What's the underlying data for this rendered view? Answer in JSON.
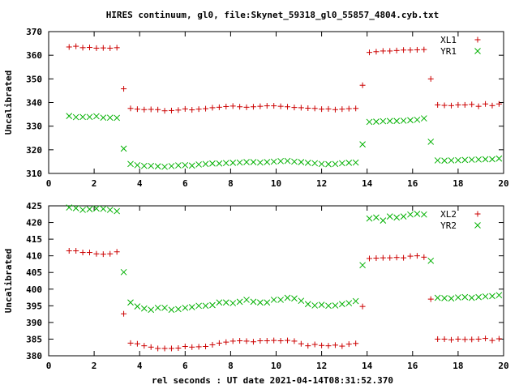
{
  "title": "HIRES continuum, gl0, file:Skynet_59318_gl0_55857_4804.cyb.txt",
  "xlabel": "rel seconds : UT date 2021-04-14T08:31:52.370",
  "colors": {
    "red": "#cc0000",
    "green": "#00b000"
  },
  "chart_data": [
    {
      "type": "scatter",
      "ylabel": "Uncalibrated",
      "xlim": [
        0,
        20
      ],
      "ylim": [
        310,
        370
      ],
      "xticks": [
        0,
        2,
        4,
        6,
        8,
        10,
        12,
        14,
        16,
        18,
        20
      ],
      "yticks": [
        310,
        320,
        330,
        340,
        350,
        360,
        370
      ],
      "grid": false,
      "legend_position": "top-right",
      "x": [
        0.9,
        1.2,
        1.5,
        1.8,
        2.1,
        2.4,
        2.7,
        3.0,
        3.3,
        3.6,
        3.9,
        4.2,
        4.5,
        4.8,
        5.1,
        5.4,
        5.7,
        6.0,
        6.3,
        6.6,
        6.9,
        7.2,
        7.5,
        7.8,
        8.1,
        8.4,
        8.7,
        9.0,
        9.3,
        9.6,
        9.9,
        10.2,
        10.5,
        10.8,
        11.1,
        11.4,
        11.7,
        12.0,
        12.3,
        12.6,
        12.9,
        13.2,
        13.5,
        13.8,
        14.1,
        14.4,
        14.7,
        15.0,
        15.3,
        15.6,
        15.9,
        16.2,
        16.5,
        16.8,
        17.1,
        17.4,
        17.7,
        18.0,
        18.3,
        18.6,
        18.9,
        19.2,
        19.5,
        19.8
      ],
      "series": [
        {
          "name": "XL1",
          "marker": "plus",
          "color": "#cc0000",
          "values": [
            363.5,
            363.8,
            363.2,
            363.3,
            363.0,
            363.1,
            363.0,
            363.2,
            345.8,
            337.5,
            337.2,
            337.0,
            337.1,
            337.0,
            336.5,
            336.6,
            336.8,
            337.3,
            336.9,
            337.2,
            337.4,
            337.8,
            338.0,
            338.3,
            338.5,
            338.2,
            338.0,
            338.2,
            338.4,
            338.6,
            338.6,
            338.4,
            338.2,
            337.9,
            337.8,
            337.6,
            337.5,
            337.2,
            337.3,
            337.0,
            337.2,
            337.4,
            337.5,
            347.3,
            361.2,
            361.5,
            361.8,
            361.8,
            362.0,
            362.2,
            362.2,
            362.3,
            362.4,
            350.0,
            339.0,
            338.8,
            338.7,
            339.0,
            339.0,
            339.2,
            338.4,
            339.4,
            338.7,
            339.4
          ]
        },
        {
          "name": "YR1",
          "marker": "cross",
          "color": "#00b000",
          "values": [
            334.3,
            333.8,
            333.9,
            333.9,
            334.2,
            333.6,
            333.6,
            333.5,
            320.5,
            314.0,
            313.5,
            313.2,
            313.2,
            313.0,
            312.8,
            313.1,
            313.4,
            313.5,
            313.3,
            313.8,
            314.0,
            314.2,
            314.2,
            314.4,
            314.5,
            314.6,
            314.8,
            314.8,
            314.6,
            314.8,
            315.0,
            315.2,
            315.3,
            315.0,
            314.8,
            314.5,
            314.3,
            314.0,
            313.9,
            314.0,
            314.3,
            314.5,
            314.6,
            322.3,
            331.8,
            331.9,
            332.1,
            332.2,
            332.2,
            332.3,
            332.5,
            332.7,
            333.3,
            323.4,
            315.5,
            315.4,
            315.5,
            315.6,
            315.7,
            315.8,
            315.9,
            316.0,
            316.0,
            316.3
          ]
        }
      ]
    },
    {
      "type": "scatter",
      "ylabel": "Uncalibrated",
      "xlim": [
        0,
        20
      ],
      "ylim": [
        380,
        425
      ],
      "xticks": [
        0,
        2,
        4,
        6,
        8,
        10,
        12,
        14,
        16,
        18,
        20
      ],
      "yticks": [
        380,
        385,
        390,
        395,
        400,
        405,
        410,
        415,
        420,
        425
      ],
      "grid": false,
      "legend_position": "top-right",
      "x": [
        0.9,
        1.2,
        1.5,
        1.8,
        2.1,
        2.4,
        2.7,
        3.0,
        3.3,
        3.6,
        3.9,
        4.2,
        4.5,
        4.8,
        5.1,
        5.4,
        5.7,
        6.0,
        6.3,
        6.6,
        6.9,
        7.2,
        7.5,
        7.8,
        8.1,
        8.4,
        8.7,
        9.0,
        9.3,
        9.6,
        9.9,
        10.2,
        10.5,
        10.8,
        11.1,
        11.4,
        11.7,
        12.0,
        12.3,
        12.6,
        12.9,
        13.2,
        13.5,
        13.8,
        14.1,
        14.4,
        14.7,
        15.0,
        15.3,
        15.6,
        15.9,
        16.2,
        16.5,
        16.8,
        17.1,
        17.4,
        17.7,
        18.0,
        18.3,
        18.6,
        18.9,
        19.2,
        19.5,
        19.8
      ],
      "series": [
        {
          "name": "XL2",
          "marker": "plus",
          "color": "#cc0000",
          "values": [
            411.5,
            411.5,
            411.0,
            411.0,
            410.6,
            410.5,
            410.6,
            411.2,
            392.6,
            383.8,
            383.6,
            383.0,
            382.6,
            382.2,
            382.2,
            382.2,
            382.3,
            382.8,
            382.6,
            382.7,
            382.8,
            383.3,
            383.8,
            384.1,
            384.4,
            384.5,
            384.4,
            384.2,
            384.5,
            384.5,
            384.6,
            384.5,
            384.6,
            384.4,
            383.6,
            383.0,
            383.4,
            383.1,
            383.0,
            383.2,
            382.9,
            383.5,
            383.7,
            394.8,
            409.2,
            409.3,
            409.4,
            409.4,
            409.5,
            409.4,
            409.9,
            410.0,
            409.6,
            397.0,
            385.0,
            385.0,
            384.8,
            385.0,
            384.9,
            384.9,
            385.0,
            385.2,
            384.6,
            385.1
          ]
        },
        {
          "name": "YR2",
          "marker": "cross",
          "color": "#00b000",
          "values": [
            424.5,
            424.3,
            423.8,
            424.0,
            424.2,
            424.1,
            423.8,
            423.4,
            405.1,
            396.0,
            394.8,
            394.2,
            393.8,
            394.4,
            394.4,
            393.8,
            394.0,
            394.4,
            394.6,
            395.0,
            395.0,
            395.2,
            396.0,
            396.0,
            395.8,
            396.2,
            396.8,
            396.2,
            396.0,
            396.0,
            396.8,
            396.8,
            397.4,
            397.2,
            396.5,
            395.5,
            395.1,
            395.3,
            395.0,
            395.1,
            395.5,
            395.8,
            396.4,
            407.2,
            421.2,
            421.5,
            420.6,
            421.8,
            421.5,
            421.8,
            422.4,
            422.6,
            422.4,
            408.5,
            397.4,
            397.3,
            397.2,
            397.5,
            397.6,
            397.4,
            397.6,
            397.8,
            397.9,
            398.2
          ]
        }
      ]
    }
  ]
}
